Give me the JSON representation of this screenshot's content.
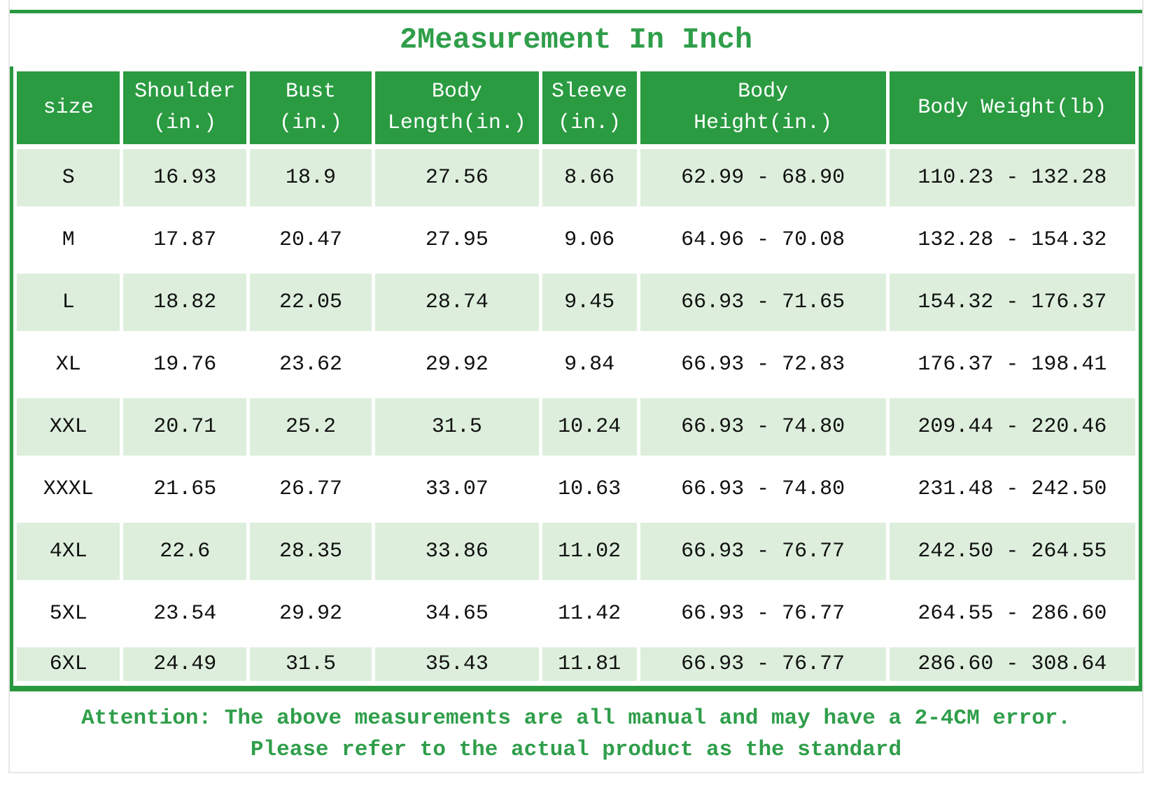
{
  "title": "2Measurement In Inch",
  "colors": {
    "border_green": "#28993e",
    "header_green": "#2a9b41",
    "row_tint_green": "#ddefdc",
    "text_green": "#2f9e4a"
  },
  "table": {
    "columns": [
      {
        "id": "size",
        "label": "size"
      },
      {
        "id": "shoulder",
        "label": "Shoulder\n(in.)"
      },
      {
        "id": "bust",
        "label": "Bust\n(in.)"
      },
      {
        "id": "body-length",
        "label": "Body\nLength(in.)"
      },
      {
        "id": "sleeve",
        "label": "Sleeve\n(in.)"
      },
      {
        "id": "body-height",
        "label": "Body\nHeight(in.)"
      },
      {
        "id": "body-weight",
        "label": "Body Weight(lb)"
      }
    ],
    "rows": [
      [
        "S",
        "16.93",
        "18.9",
        "27.56",
        "8.66",
        "62.99 - 68.90",
        "110.23 - 132.28"
      ],
      [
        "M",
        "17.87",
        "20.47",
        "27.95",
        "9.06",
        "64.96 - 70.08",
        "132.28 - 154.32"
      ],
      [
        "L",
        "18.82",
        "22.05",
        "28.74",
        "9.45",
        "66.93 - 71.65",
        "154.32 - 176.37"
      ],
      [
        "XL",
        "19.76",
        "23.62",
        "29.92",
        "9.84",
        "66.93 - 72.83",
        "176.37 - 198.41"
      ],
      [
        "XXL",
        "20.71",
        "25.2",
        "31.5",
        "10.24",
        "66.93 - 74.80",
        "209.44 - 220.46"
      ],
      [
        "XXXL",
        "21.65",
        "26.77",
        "33.07",
        "10.63",
        "66.93 - 74.80",
        "231.48 - 242.50"
      ],
      [
        "4XL",
        "22.6",
        "28.35",
        "33.86",
        "11.02",
        "66.93 - 76.77",
        "242.50 - 264.55"
      ],
      [
        "5XL",
        "23.54",
        "29.92",
        "34.65",
        "11.42",
        "66.93 - 76.77",
        "264.55 - 286.60"
      ],
      [
        "6XL",
        "24.49",
        "31.5",
        "35.43",
        "11.81",
        "66.93 - 76.77",
        "286.60 - 308.64"
      ]
    ]
  },
  "footer": {
    "line1": "Attention: The above measurements are all manual and may have a 2-4CM error.",
    "line2": "Please refer to the actual product as the standard"
  },
  "chart_data": {
    "type": "table",
    "title": "2Measurement In Inch",
    "columns": [
      "size",
      "Shoulder (in.)",
      "Bust (in.)",
      "Body Length(in.)",
      "Sleeve (in.)",
      "Body Height(in.)",
      "Body Weight(lb)"
    ],
    "rows": [
      [
        "S",
        16.93,
        18.9,
        27.56,
        8.66,
        "62.99 - 68.90",
        "110.23 - 132.28"
      ],
      [
        "M",
        17.87,
        20.47,
        27.95,
        9.06,
        "64.96 - 70.08",
        "132.28 - 154.32"
      ],
      [
        "L",
        18.82,
        22.05,
        28.74,
        9.45,
        "66.93 - 71.65",
        "154.32 - 176.37"
      ],
      [
        "XL",
        19.76,
        23.62,
        29.92,
        9.84,
        "66.93 - 72.83",
        "176.37 - 198.41"
      ],
      [
        "XXL",
        20.71,
        25.2,
        31.5,
        10.24,
        "66.93 - 74.80",
        "209.44 - 220.46"
      ],
      [
        "XXXL",
        21.65,
        26.77,
        33.07,
        10.63,
        "66.93 - 74.80",
        "231.48 - 242.50"
      ],
      [
        "4XL",
        22.6,
        28.35,
        33.86,
        11.02,
        "66.93 - 76.77",
        "242.50 - 264.55"
      ],
      [
        "5XL",
        23.54,
        29.92,
        34.65,
        11.42,
        "66.93 - 76.77",
        "264.55 - 286.60"
      ],
      [
        "6XL",
        24.49,
        31.5,
        35.43,
        11.81,
        "66.93 - 76.77",
        "286.60 - 308.64"
      ]
    ]
  }
}
